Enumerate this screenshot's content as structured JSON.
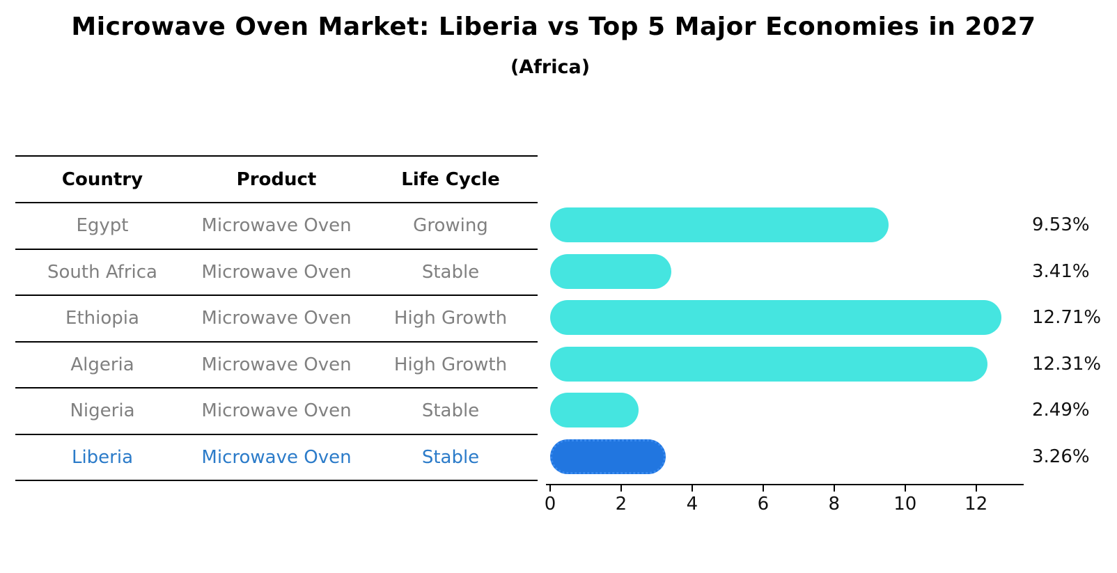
{
  "title": "Microwave Oven Market: Liberia vs Top 5 Major Economies in 2027",
  "subtitle": "(Africa)",
  "table": {
    "headers": {
      "country": "Country",
      "product": "Product",
      "life_cycle": "Life Cycle"
    },
    "rows": [
      {
        "country": "Egypt",
        "product": "Microwave Oven",
        "life_cycle": "Growing"
      },
      {
        "country": "South Africa",
        "product": "Microwave Oven",
        "life_cycle": "Stable"
      },
      {
        "country": "Ethiopia",
        "product": "Microwave Oven",
        "life_cycle": "High Growth"
      },
      {
        "country": "Algeria",
        "product": "Microwave Oven",
        "life_cycle": "High Growth"
      },
      {
        "country": "Nigeria",
        "product": "Microwave Oven",
        "life_cycle": "Stable"
      },
      {
        "country": "Liberia",
        "product": "Microwave Oven",
        "life_cycle": "Stable"
      }
    ],
    "highlighted_country": "Liberia"
  },
  "chart_data": {
    "type": "bar",
    "orientation": "horizontal",
    "title": "Microwave Oven Market: Liberia vs Top 5 Major Economies in 2027 (Africa)",
    "categories": [
      "Egypt",
      "South Africa",
      "Ethiopia",
      "Algeria",
      "Nigeria",
      "Liberia"
    ],
    "values": [
      9.53,
      3.41,
      12.71,
      12.31,
      2.49,
      3.26
    ],
    "value_labels": [
      "9.53%",
      "3.41%",
      "12.71%",
      "12.31%",
      "2.49%",
      "3.26%"
    ],
    "x_ticks": [
      0,
      2,
      4,
      6,
      8,
      10,
      12
    ],
    "xlim": [
      0,
      13.3
    ],
    "grid": false,
    "legend": false,
    "bar_color": "#45e5e0",
    "highlight_bar_color": "#2176e0",
    "highlight_index": 5
  },
  "colors": {
    "background": "#ffffff",
    "table_text": "#808080",
    "header_text": "#000000",
    "highlight_text": "#2b7bc9",
    "axis": "#000000",
    "value_label_text": "#111111"
  }
}
